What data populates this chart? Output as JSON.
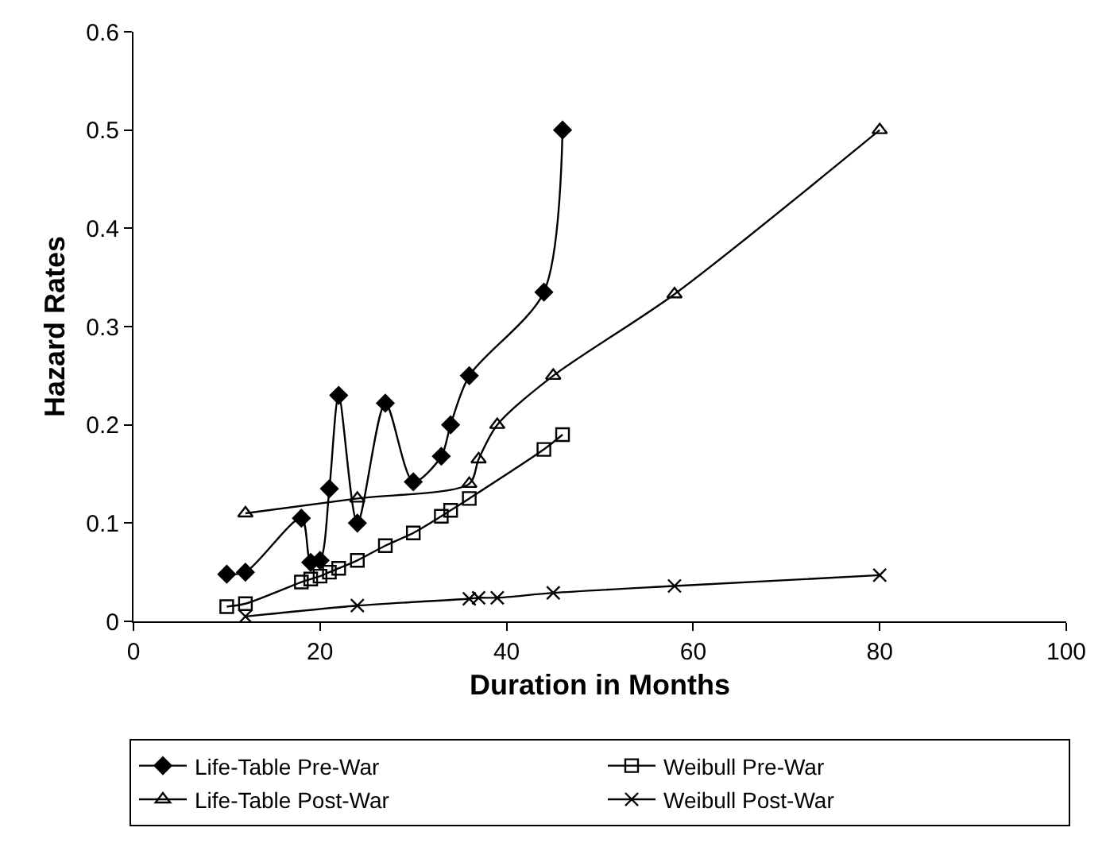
{
  "chart_data": {
    "type": "line",
    "xlabel": "Duration in Months",
    "ylabel": "Hazard Rates",
    "xlim": [
      0,
      100
    ],
    "xticks": [
      0,
      20,
      40,
      60,
      80,
      100
    ],
    "ylim": [
      0,
      0.6
    ],
    "yticks": [
      0,
      0.1,
      0.2,
      0.3,
      0.4,
      0.5,
      0.6
    ],
    "grid": false,
    "legend": "bottom",
    "line_style": "solid",
    "series": [
      {
        "name": "Life-Table Pre-War",
        "color": "#000000",
        "marker": "diamond",
        "x": [
          10,
          12,
          18,
          19,
          20,
          21,
          22,
          24,
          27,
          30,
          33,
          34,
          36,
          44,
          46
        ],
        "values": [
          0.048,
          0.05,
          0.105,
          0.06,
          0.062,
          0.135,
          0.23,
          0.1,
          0.222,
          0.142,
          0.168,
          0.2,
          0.25,
          0.335,
          0.5
        ]
      },
      {
        "name": "Weibull Pre-War",
        "color": "#000000",
        "marker": "square",
        "x": [
          10,
          12,
          18,
          19,
          20,
          21,
          22,
          24,
          27,
          30,
          33,
          34,
          36,
          44,
          46
        ],
        "values": [
          0.015,
          0.018,
          0.04,
          0.043,
          0.046,
          0.05,
          0.054,
          0.062,
          0.077,
          0.09,
          0.107,
          0.113,
          0.125,
          0.175,
          0.19
        ]
      },
      {
        "name": "Life-Table Post-War",
        "color": "#000000",
        "marker": "triangle",
        "x": [
          12,
          24,
          36,
          37,
          39,
          45,
          58,
          80
        ],
        "values": [
          0.11,
          0.125,
          0.14,
          0.165,
          0.2,
          0.25,
          0.333,
          0.5
        ]
      },
      {
        "name": "Weibull Post-War",
        "color": "#000000",
        "marker": "cross",
        "x": [
          12,
          24,
          36,
          37,
          39,
          45,
          58,
          80
        ],
        "values": [
          0.005,
          0.016,
          0.023,
          0.024,
          0.024,
          0.029,
          0.036,
          0.047
        ]
      }
    ]
  }
}
